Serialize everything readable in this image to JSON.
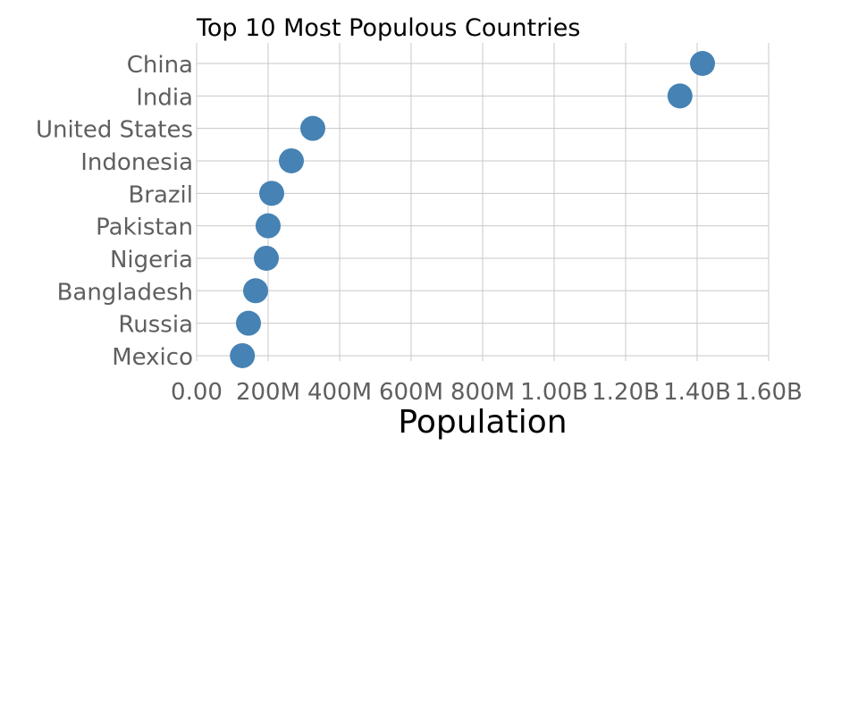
{
  "chart_data": {
    "type": "scatter",
    "title": "Top 10 Most Populous Countries",
    "xlabel": "Population",
    "ylabel": "",
    "xlim": [
      0,
      1600000000
    ],
    "grid": true,
    "marker_color": "#4682b4",
    "categories": [
      "China",
      "India",
      "United States",
      "Indonesia",
      "Brazil",
      "Pakistan",
      "Nigeria",
      "Bangladesh",
      "Russia",
      "Mexico"
    ],
    "values": [
      1415000000,
      1352000000,
      325000000,
      265000000,
      210000000,
      200000000,
      195000000,
      165000000,
      145000000,
      128000000
    ],
    "x_ticks": [
      0,
      200000000,
      400000000,
      600000000,
      800000000,
      1000000000,
      1200000000,
      1400000000,
      1600000000
    ],
    "x_tick_labels": [
      "0.00",
      "200M",
      "400M",
      "600M",
      "800M",
      "1.00B",
      "1.20B",
      "1.40B",
      "1.60B"
    ]
  }
}
